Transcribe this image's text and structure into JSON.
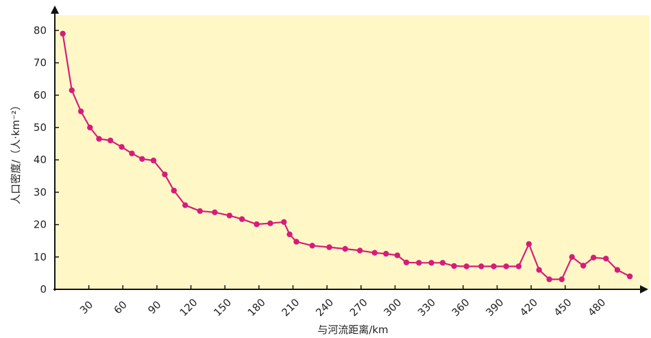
{
  "chart_data": {
    "type": "line",
    "title": "",
    "xlabel": "与河流距离/km",
    "ylabel": "人口密度/（人·km⁻²）",
    "xlim": [
      0,
      510
    ],
    "ylim": [
      0,
      85
    ],
    "x_ticks": [
      30,
      60,
      90,
      120,
      150,
      180,
      210,
      240,
      270,
      300,
      330,
      360,
      390,
      420,
      450,
      480
    ],
    "y_ticks": [
      0,
      10,
      20,
      30,
      40,
      50,
      60,
      70,
      80
    ],
    "grid": false,
    "legend": "none",
    "colors": {
      "plot_background": "#FFF8C6",
      "line": "#D81B7A",
      "axis": "#111111"
    },
    "series": [
      {
        "points": [
          [
            7,
            79
          ],
          [
            15,
            61.5
          ],
          [
            23,
            55
          ],
          [
            31,
            50
          ],
          [
            39,
            46.5
          ],
          [
            49,
            46
          ],
          [
            59,
            44
          ],
          [
            68,
            42
          ],
          [
            77,
            40.3
          ],
          [
            87,
            39.8
          ],
          [
            97,
            35.5
          ],
          [
            105,
            30.5
          ],
          [
            115,
            26
          ],
          [
            128,
            24.2
          ],
          [
            141,
            23.8
          ],
          [
            154,
            22.8
          ],
          [
            165,
            21.7
          ],
          [
            178,
            20.1
          ],
          [
            190,
            20.4
          ],
          [
            202,
            20.8
          ],
          [
            207,
            17
          ],
          [
            213,
            14.7
          ],
          [
            227,
            13.5
          ],
          [
            242,
            13
          ],
          [
            256,
            12.5
          ],
          [
            269,
            12
          ],
          [
            282,
            11.3
          ],
          [
            292,
            11
          ],
          [
            302,
            10.5
          ],
          [
            310,
            8.3
          ],
          [
            321,
            8.2
          ],
          [
            332,
            8.2
          ],
          [
            342,
            8.2
          ],
          [
            352,
            7.2
          ],
          [
            363,
            7.1
          ],
          [
            376,
            7.1
          ],
          [
            387,
            7.1
          ],
          [
            398,
            7.1
          ],
          [
            409,
            7.1
          ],
          [
            418,
            14
          ],
          [
            427,
            6
          ],
          [
            436,
            3.1
          ],
          [
            447,
            3.1
          ],
          [
            456,
            10
          ],
          [
            466,
            7.3
          ],
          [
            475,
            9.8
          ],
          [
            486,
            9.5
          ],
          [
            496,
            6
          ],
          [
            507,
            4
          ]
        ]
      }
    ]
  }
}
